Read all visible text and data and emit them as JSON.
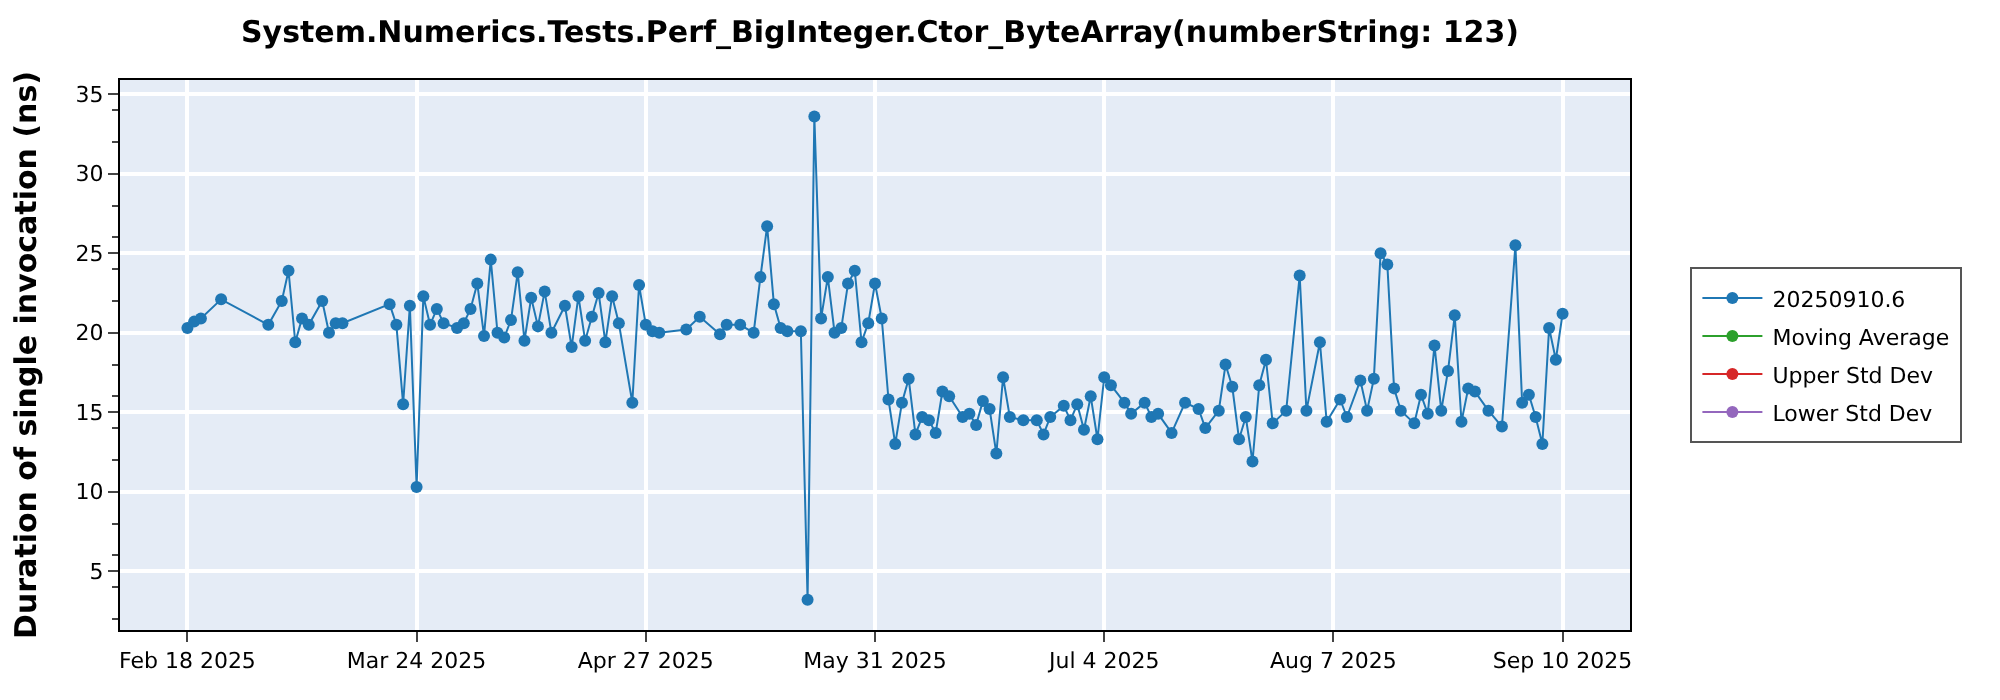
{
  "chart_data": {
    "type": "line",
    "title": "System.Numerics.Tests.Perf_BigInteger.Ctor_ByteArray(numberString: 123)",
    "ylabel": "Duration of single invocation (ns)",
    "xlim": [
      "2025-02-08",
      "2025-09-20"
    ],
    "xticks": [
      {
        "value": "2025-02-18",
        "label": "Feb 18 2025"
      },
      {
        "value": "2025-03-24",
        "label": "Mar 24 2025"
      },
      {
        "value": "2025-04-27",
        "label": "Apr 27 2025"
      },
      {
        "value": "2025-05-31",
        "label": "May 31 2025"
      },
      {
        "value": "2025-07-04",
        "label": "Jul 4 2025"
      },
      {
        "value": "2025-08-07",
        "label": "Aug 7 2025"
      },
      {
        "value": "2025-09-10",
        "label": "Sep 10 2025"
      }
    ],
    "ylim": [
      1.3,
      35.9
    ],
    "yticks": [
      5,
      10,
      15,
      20,
      25,
      30,
      35
    ],
    "grid": true,
    "legend": "right",
    "marker": "circle",
    "line_style": "solid",
    "series": [
      {
        "name": "20250910.6",
        "color": "#1f77b4",
        "x": [
          "2025-02-18",
          "2025-02-19",
          "2025-02-20",
          "2025-02-23",
          "2025-03-02",
          "2025-03-04",
          "2025-03-05",
          "2025-03-06",
          "2025-03-07",
          "2025-03-08",
          "2025-03-10",
          "2025-03-11",
          "2025-03-12",
          "2025-03-13",
          "2025-03-20",
          "2025-03-21",
          "2025-03-22",
          "2025-03-23",
          "2025-03-24",
          "2025-03-25",
          "2025-03-26",
          "2025-03-27",
          "2025-03-28",
          "2025-03-30",
          "2025-03-31",
          "2025-04-01",
          "2025-04-02",
          "2025-04-03",
          "2025-04-04",
          "2025-04-05",
          "2025-04-06",
          "2025-04-07",
          "2025-04-08",
          "2025-04-09",
          "2025-04-10",
          "2025-04-11",
          "2025-04-12",
          "2025-04-13",
          "2025-04-15",
          "2025-04-16",
          "2025-04-17",
          "2025-04-18",
          "2025-04-19",
          "2025-04-20",
          "2025-04-21",
          "2025-04-22",
          "2025-04-23",
          "2025-04-25",
          "2025-04-26",
          "2025-04-27",
          "2025-04-28",
          "2025-04-29",
          "2025-05-03",
          "2025-05-05",
          "2025-05-08",
          "2025-05-09",
          "2025-05-11",
          "2025-05-13",
          "2025-05-14",
          "2025-05-15",
          "2025-05-16",
          "2025-05-17",
          "2025-05-18",
          "2025-05-20",
          "2025-05-21",
          "2025-05-22",
          "2025-05-23",
          "2025-05-24",
          "2025-05-25",
          "2025-05-26",
          "2025-05-27",
          "2025-05-28",
          "2025-05-29",
          "2025-05-30",
          "2025-05-31",
          "2025-06-01",
          "2025-06-02",
          "2025-06-03",
          "2025-06-04",
          "2025-06-05",
          "2025-06-06",
          "2025-06-07",
          "2025-06-08",
          "2025-06-09",
          "2025-06-10",
          "2025-06-11",
          "2025-06-13",
          "2025-06-14",
          "2025-06-15",
          "2025-06-16",
          "2025-06-17",
          "2025-06-18",
          "2025-06-19",
          "2025-06-20",
          "2025-06-22",
          "2025-06-24",
          "2025-06-25",
          "2025-06-26",
          "2025-06-28",
          "2025-06-29",
          "2025-06-30",
          "2025-07-01",
          "2025-07-02",
          "2025-07-03",
          "2025-07-04",
          "2025-07-05",
          "2025-07-07",
          "2025-07-08",
          "2025-07-10",
          "2025-07-11",
          "2025-07-12",
          "2025-07-14",
          "2025-07-16",
          "2025-07-18",
          "2025-07-19",
          "2025-07-21",
          "2025-07-22",
          "2025-07-23",
          "2025-07-24",
          "2025-07-25",
          "2025-07-26",
          "2025-07-27",
          "2025-07-28",
          "2025-07-29",
          "2025-07-31",
          "2025-08-02",
          "2025-08-03",
          "2025-08-05",
          "2025-08-06",
          "2025-08-08",
          "2025-08-09",
          "2025-08-11",
          "2025-08-12",
          "2025-08-13",
          "2025-08-14",
          "2025-08-15",
          "2025-08-16",
          "2025-08-17",
          "2025-08-19",
          "2025-08-20",
          "2025-08-21",
          "2025-08-22",
          "2025-08-23",
          "2025-08-24",
          "2025-08-25",
          "2025-08-26",
          "2025-08-27",
          "2025-08-28",
          "2025-08-30",
          "2025-09-01",
          "2025-09-03",
          "2025-09-04",
          "2025-09-05",
          "2025-09-06",
          "2025-09-07",
          "2025-09-08",
          "2025-09-09",
          "2025-09-10"
        ],
        "values": [
          20.3,
          20.7,
          20.9,
          22.1,
          20.5,
          22.0,
          23.9,
          19.4,
          20.9,
          20.5,
          22.0,
          20.0,
          20.6,
          20.6,
          21.8,
          20.5,
          15.5,
          21.7,
          10.3,
          22.3,
          20.5,
          21.5,
          20.6,
          20.3,
          20.6,
          21.5,
          23.1,
          19.8,
          24.6,
          20.0,
          19.7,
          20.8,
          23.8,
          19.5,
          22.2,
          20.4,
          22.6,
          20.0,
          21.7,
          19.1,
          22.3,
          19.5,
          21.0,
          22.5,
          19.4,
          22.3,
          20.6,
          15.6,
          23.0,
          20.5,
          20.1,
          20.0,
          20.2,
          21.0,
          19.9,
          20.5,
          20.5,
          20.0,
          23.5,
          26.7,
          21.8,
          20.3,
          20.1,
          20.1,
          3.2,
          33.6,
          20.9,
          23.5,
          20.0,
          20.3,
          23.1,
          23.9,
          19.4,
          20.6,
          23.1,
          20.9,
          15.8,
          13.0,
          15.6,
          17.1,
          13.6,
          14.7,
          14.5,
          13.7,
          16.3,
          16.0,
          14.7,
          14.9,
          14.2,
          15.7,
          15.2,
          12.4,
          17.2,
          14.7,
          14.5,
          14.5,
          13.6,
          14.7,
          15.4,
          14.5,
          15.5,
          13.9,
          16.0,
          13.3,
          17.2,
          16.7,
          15.6,
          14.9,
          15.6,
          14.7,
          14.9,
          13.7,
          15.6,
          15.2,
          14.0,
          15.1,
          18.0,
          16.6,
          13.3,
          14.7,
          11.9,
          16.7,
          18.3,
          14.3,
          15.1,
          23.6,
          15.1,
          19.4,
          14.4,
          15.8,
          14.7,
          17.0,
          15.1,
          17.1,
          25.0,
          24.3,
          16.5,
          15.1,
          14.3,
          16.1,
          14.9,
          19.2,
          15.1,
          17.6,
          21.1,
          14.4,
          16.5,
          16.3,
          15.1,
          14.1,
          25.5,
          15.6,
          16.1,
          14.7,
          13.0,
          20.3,
          18.3,
          21.2
        ]
      },
      {
        "name": "Moving Average",
        "color": "#2ca02c"
      },
      {
        "name": "Upper Std Dev",
        "color": "#d62728"
      },
      {
        "name": "Lower Std Dev",
        "color": "#9467bd"
      }
    ]
  }
}
